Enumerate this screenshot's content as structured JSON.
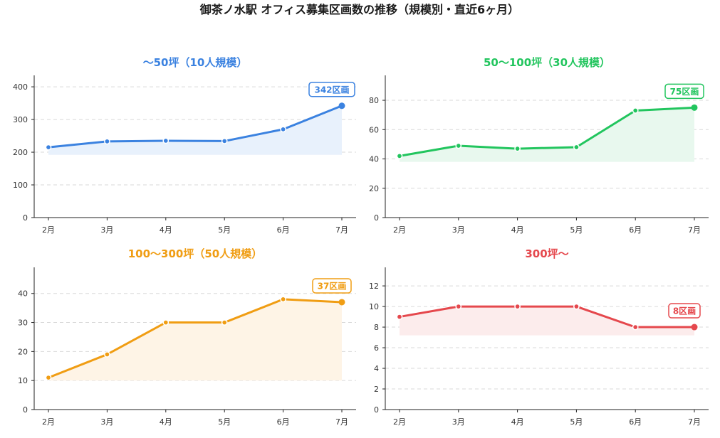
{
  "title": "御茶ノ水駅 オフィス募集区画数の推移（規模別・直近6ヶ月）",
  "chart_data": [
    {
      "type": "area",
      "title": "〜50坪（10人規模）",
      "color": "#3b82e0",
      "fill": "#e8f1fc",
      "x": [
        "2月",
        "3月",
        "4月",
        "5月",
        "6月",
        "7月"
      ],
      "values": [
        215,
        233,
        235,
        234,
        270,
        342
      ],
      "ylim": [
        0,
        435
      ],
      "yticks": [
        0,
        100,
        200,
        300,
        400
      ],
      "fill_base": 192,
      "end_label": "342区画",
      "grid": true
    },
    {
      "type": "area",
      "title": "50〜100坪（30人規模）",
      "color": "#22c55e",
      "fill": "#e8f8ee",
      "x": [
        "2月",
        "3月",
        "4月",
        "5月",
        "6月",
        "7月"
      ],
      "values": [
        42,
        49,
        47,
        48,
        73,
        75
      ],
      "ylim": [
        0,
        97
      ],
      "yticks": [
        0,
        20,
        40,
        60,
        80
      ],
      "fill_base": 38,
      "end_label": "75区画",
      "grid": true
    },
    {
      "type": "area",
      "title": "100〜300坪（50人規模）",
      "color": "#f09d13",
      "fill": "#fef4e6",
      "x": [
        "2月",
        "3月",
        "4月",
        "5月",
        "6月",
        "7月"
      ],
      "values": [
        11,
        19,
        30,
        30,
        38,
        37
      ],
      "ylim": [
        0,
        49
      ],
      "yticks": [
        0,
        10,
        20,
        30,
        40
      ],
      "fill_base": 10,
      "end_label": "37区画",
      "grid": true
    },
    {
      "type": "area",
      "title": "300坪〜",
      "color": "#e5484d",
      "fill": "#fcecec",
      "x": [
        "2月",
        "3月",
        "4月",
        "5月",
        "6月",
        "7月"
      ],
      "values": [
        9,
        10,
        10,
        10,
        8,
        8
      ],
      "ylim": [
        0,
        13.8
      ],
      "yticks": [
        0,
        2,
        4,
        6,
        8,
        10,
        12
      ],
      "fill_base": 7.2,
      "end_label": "8区画",
      "grid": true
    }
  ]
}
